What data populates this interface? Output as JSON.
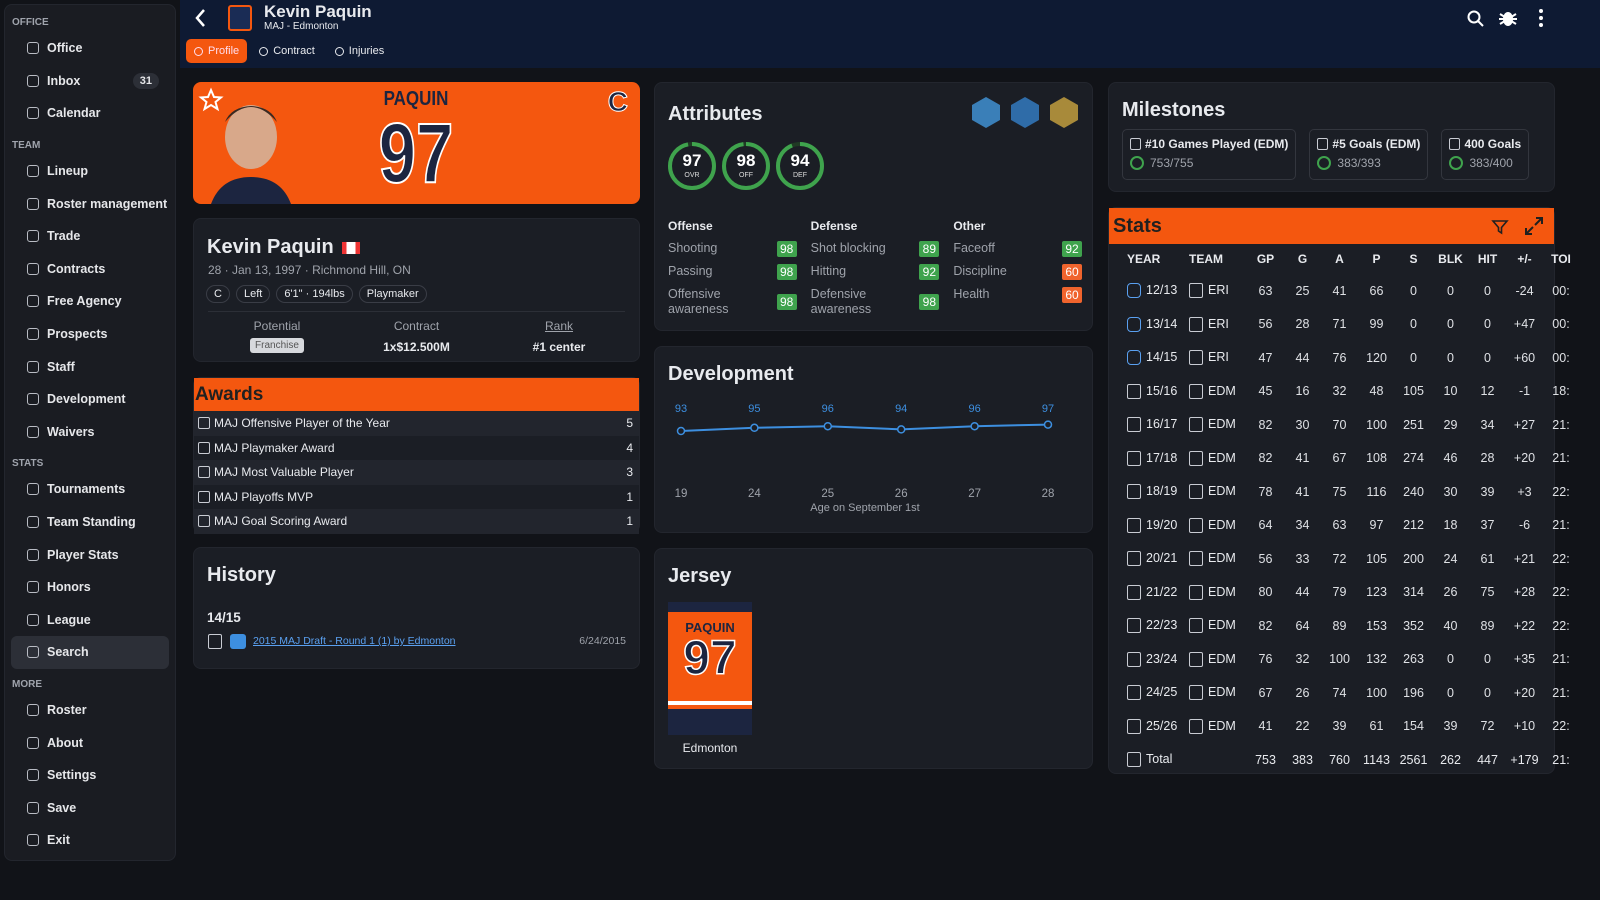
{
  "sidebar": [
    {
      "title": "OFFICE",
      "items": [
        {
          "label": "Office"
        },
        {
          "label": "Inbox",
          "badge": "31"
        },
        {
          "label": "Calendar"
        }
      ]
    },
    {
      "title": "TEAM",
      "items": [
        {
          "label": "Lineup"
        },
        {
          "label": "Roster management"
        },
        {
          "label": "Trade"
        },
        {
          "label": "Contracts"
        },
        {
          "label": "Free Agency"
        },
        {
          "label": "Prospects"
        },
        {
          "label": "Staff"
        },
        {
          "label": "Development"
        },
        {
          "label": "Waivers"
        }
      ]
    },
    {
      "title": "STATS",
      "items": [
        {
          "label": "Tournaments"
        },
        {
          "label": "Team Standing"
        },
        {
          "label": "Player Stats"
        },
        {
          "label": "Honors"
        },
        {
          "label": "League"
        },
        {
          "label": "Search",
          "active": true
        }
      ]
    },
    {
      "title": "MORE",
      "items": [
        {
          "label": "Roster"
        },
        {
          "label": "About"
        },
        {
          "label": "Settings"
        },
        {
          "label": "Save"
        },
        {
          "label": "Exit"
        }
      ]
    }
  ],
  "header": {
    "name": "Kevin Paquin",
    "subtitle": "MAJ - Edmonton",
    "tabs": [
      {
        "label": "Profile",
        "active": true
      },
      {
        "label": "Contract"
      },
      {
        "label": "Injuries"
      }
    ]
  },
  "hero": {
    "jersey_name": "PAQUIN",
    "number": "97",
    "captain": "C"
  },
  "bio": {
    "name": "Kevin Paquin",
    "details": "28 · Jan 13, 1997 · Richmond Hill, ON",
    "tags": [
      "C",
      "Left",
      "6'1\" · 194lbs",
      "Playmaker"
    ],
    "potential_label": "Potential",
    "potential": "Franchise",
    "contract_label": "Contract",
    "contract": "1x$12.500M",
    "rank_label": "Rank",
    "rank": "#1 center"
  },
  "awards": {
    "title": "Awards",
    "rows": [
      {
        "name": "MAJ Offensive Player of the Year",
        "count": "5"
      },
      {
        "name": "MAJ Playmaker Award",
        "count": "4"
      },
      {
        "name": "MAJ Most Valuable Player",
        "count": "3"
      },
      {
        "name": "MAJ Playoffs MVP",
        "count": "1"
      },
      {
        "name": "MAJ Goal Scoring Award",
        "count": "1"
      }
    ]
  },
  "history": {
    "title": "History",
    "season": "14/15",
    "entry": "2015 MAJ Draft - Round 1 (1) by Edmonton",
    "date": "6/24/2015"
  },
  "attributes": {
    "title": "Attributes",
    "ratings": [
      {
        "value": 97,
        "label": "OVR"
      },
      {
        "value": 98,
        "label": "OFF"
      },
      {
        "value": 94,
        "label": "DEF"
      }
    ],
    "groups": [
      {
        "title": "Offense",
        "items": [
          {
            "name": "Shooting",
            "value": 98
          },
          {
            "name": "Passing",
            "value": 98
          },
          {
            "name": "Offensive awareness",
            "value": 98
          }
        ]
      },
      {
        "title": "Defense",
        "items": [
          {
            "name": "Shot blocking",
            "value": 89
          },
          {
            "name": "Hitting",
            "value": 92
          },
          {
            "name": "Defensive awareness",
            "value": 98
          }
        ]
      },
      {
        "title": "Other",
        "items": [
          {
            "name": "Faceoff",
            "value": 92
          },
          {
            "name": "Discipline",
            "value": 60
          },
          {
            "name": "Health",
            "value": 60
          }
        ]
      }
    ]
  },
  "development": {
    "title": "Development",
    "chart_data": {
      "type": "line",
      "categories": [
        "19",
        "24",
        "25",
        "26",
        "27",
        "28"
      ],
      "values": [
        93,
        95,
        96,
        94,
        96,
        97
      ],
      "color": "#3d8fe0",
      "x_label": "Age on September 1st"
    }
  },
  "jersey": {
    "title": "Jersey",
    "name": "PAQUIN",
    "number": "97",
    "team": "Edmonton"
  },
  "milestones": {
    "title": "Milestones",
    "items": [
      {
        "title": "#10 Games Played (EDM)",
        "progress": "753/755"
      },
      {
        "title": "#5 Goals (EDM)",
        "progress": "383/393"
      },
      {
        "title": "400 Goals",
        "progress": "383/400"
      }
    ]
  },
  "stats": {
    "title": "Stats",
    "columns": [
      "YEAR",
      "TEAM",
      "GP",
      "G",
      "A",
      "P",
      "S",
      "BLK",
      "HIT",
      "+/-",
      "TOI"
    ],
    "rows": [
      [
        "12/13",
        "ERI",
        "63",
        "25",
        "41",
        "66",
        "0",
        "0",
        "0",
        "-24",
        "00:"
      ],
      [
        "13/14",
        "ERI",
        "56",
        "28",
        "71",
        "99",
        "0",
        "0",
        "0",
        "+47",
        "00:"
      ],
      [
        "14/15",
        "ERI",
        "47",
        "44",
        "76",
        "120",
        "0",
        "0",
        "0",
        "+60",
        "00:"
      ],
      [
        "15/16",
        "EDM",
        "45",
        "16",
        "32",
        "48",
        "105",
        "10",
        "12",
        "-1",
        "18:"
      ],
      [
        "16/17",
        "EDM",
        "82",
        "30",
        "70",
        "100",
        "251",
        "29",
        "34",
        "+27",
        "21:"
      ],
      [
        "17/18",
        "EDM",
        "82",
        "41",
        "67",
        "108",
        "274",
        "46",
        "28",
        "+20",
        "21:"
      ],
      [
        "18/19",
        "EDM",
        "78",
        "41",
        "75",
        "116",
        "240",
        "30",
        "39",
        "+3",
        "22:"
      ],
      [
        "19/20",
        "EDM",
        "64",
        "34",
        "63",
        "97",
        "212",
        "18",
        "37",
        "-6",
        "21:"
      ],
      [
        "20/21",
        "EDM",
        "56",
        "33",
        "72",
        "105",
        "200",
        "24",
        "61",
        "+21",
        "22:"
      ],
      [
        "21/22",
        "EDM",
        "80",
        "44",
        "79",
        "123",
        "314",
        "26",
        "75",
        "+28",
        "22:"
      ],
      [
        "22/23",
        "EDM",
        "82",
        "64",
        "89",
        "153",
        "352",
        "40",
        "89",
        "+22",
        "22:"
      ],
      [
        "23/24",
        "EDM",
        "76",
        "32",
        "100",
        "132",
        "263",
        "0",
        "0",
        "+35",
        "21:"
      ],
      [
        "24/25",
        "EDM",
        "67",
        "26",
        "74",
        "100",
        "196",
        "0",
        "0",
        "+20",
        "21:"
      ],
      [
        "25/26",
        "EDM",
        "41",
        "22",
        "39",
        "61",
        "154",
        "39",
        "72",
        "+10",
        "22:"
      ]
    ],
    "total": [
      "Total",
      "753",
      "383",
      "760",
      "1143",
      "2561",
      "262",
      "447",
      "+179",
      "21:"
    ]
  }
}
